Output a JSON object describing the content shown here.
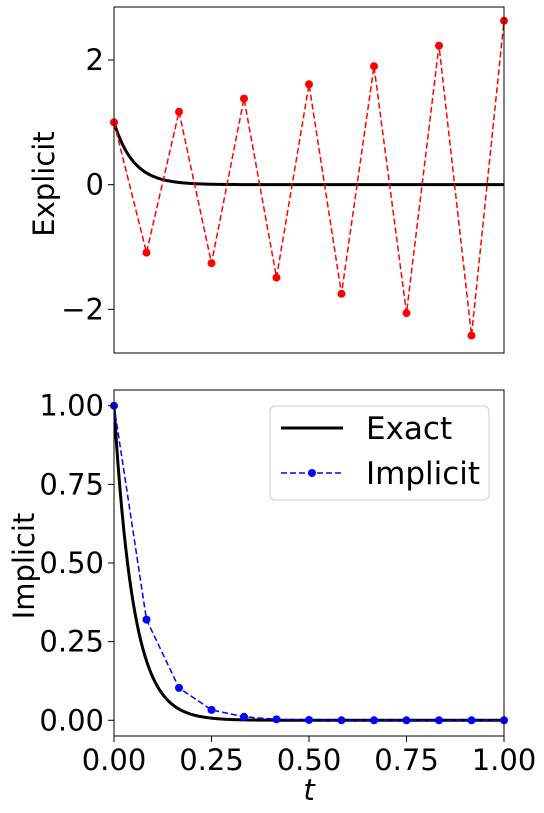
{
  "chart_data": [
    {
      "type": "line",
      "ylabel": "Explicit",
      "xlim": [
        0,
        1
      ],
      "ylim": [
        -2.7,
        2.85
      ],
      "yticks": [
        {
          "v": -2,
          "label": "−2"
        },
        {
          "v": 0,
          "label": "0"
        },
        {
          "v": 2,
          "label": "2"
        }
      ],
      "xticks_shown": false,
      "grid": false,
      "series": [
        {
          "role": "exact",
          "color": "#000000",
          "style": "solid",
          "k": 20,
          "x": [
            0,
            0.0833,
            0.1667,
            0.25,
            0.3333,
            0.4167,
            0.5,
            0.5833,
            0.6667,
            0.75,
            0.8333,
            0.9167,
            1.0
          ],
          "values": [
            1.0,
            0.189,
            0.036,
            0.007,
            0.001,
            0.0,
            0.0,
            0.0,
            0.0,
            0.0,
            0.0,
            0.0,
            0.0
          ]
        },
        {
          "role": "explicit",
          "color": "#ff0000",
          "style": "dashed",
          "marker": "circle",
          "x": [
            0,
            0.0833,
            0.1667,
            0.25,
            0.3333,
            0.4167,
            0.5,
            0.5833,
            0.6667,
            0.75,
            0.8333,
            0.9167,
            1.0
          ],
          "values": [
            1.0,
            -1.09,
            1.17,
            -1.26,
            1.38,
            -1.49,
            1.61,
            -1.75,
            1.9,
            -2.06,
            2.23,
            -2.42,
            2.63
          ]
        }
      ]
    },
    {
      "type": "line",
      "ylabel": "Implicit",
      "xlabel": "t",
      "xlim": [
        0,
        1
      ],
      "ylim": [
        -0.05,
        1.05
      ],
      "yticks": [
        {
          "v": 0,
          "label": "0.00"
        },
        {
          "v": 0.25,
          "label": "0.25"
        },
        {
          "v": 0.5,
          "label": "0.50"
        },
        {
          "v": 0.75,
          "label": "0.75"
        },
        {
          "v": 1.0,
          "label": "1.00"
        }
      ],
      "xticks": [
        {
          "v": 0,
          "label": "0.00"
        },
        {
          "v": 0.25,
          "label": "0.25"
        },
        {
          "v": 0.5,
          "label": "0.50"
        },
        {
          "v": 0.75,
          "label": "0.75"
        },
        {
          "v": 1.0,
          "label": "1.00"
        }
      ],
      "grid": false,
      "legend": {
        "placement": "top-right"
      },
      "series": [
        {
          "name": "Exact",
          "color": "#000000",
          "style": "solid",
          "k": 20,
          "x": [
            0,
            0.0833,
            0.1667,
            0.25,
            0.3333,
            0.4167,
            0.5,
            0.5833,
            0.6667,
            0.75,
            0.8333,
            0.9167,
            1.0
          ],
          "values": [
            1.0,
            0.189,
            0.036,
            0.007,
            0.001,
            0.0,
            0.0,
            0.0,
            0.0,
            0.0,
            0.0,
            0.0,
            0.0
          ]
        },
        {
          "name": "Implicit",
          "color": "#0000ff",
          "style": "dashed",
          "marker": "circle",
          "x": [
            0,
            0.0833,
            0.1667,
            0.25,
            0.3333,
            0.4167,
            0.5,
            0.5833,
            0.6667,
            0.75,
            0.8333,
            0.9167,
            1.0
          ],
          "values": [
            1.0,
            0.32,
            0.103,
            0.033,
            0.011,
            0.003,
            0.001,
            0.0,
            0.0,
            0.0,
            0.0,
            0.0,
            0.0
          ]
        }
      ]
    }
  ]
}
